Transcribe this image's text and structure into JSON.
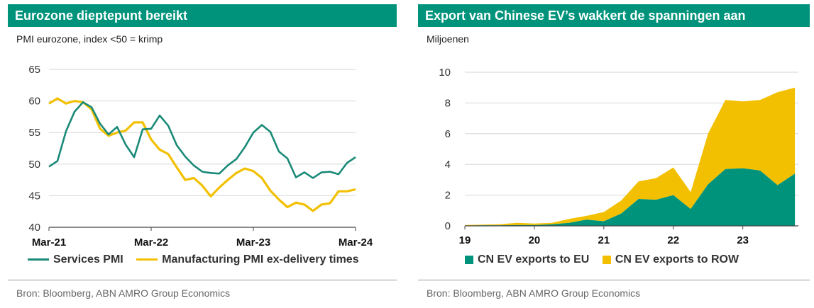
{
  "left": {
    "title": "Eurozone dieptepunt bereikt",
    "subtitle": "PMI eurozone, index <50 = krimp",
    "source": "Bron: Bloomberg, ABN AMRO Group Economics"
  },
  "right": {
    "title": "Export van Chinese EV’s wakkert de spanningen aan",
    "subtitle": "Miljoenen",
    "source": "Bron: Bloomberg, ABN AMRO Group Economics"
  },
  "chart_data": [
    {
      "type": "line",
      "title": "Eurozone dieptepunt bereikt",
      "subtitle": "PMI eurozone, index <50 = krimp",
      "x_ticks": [
        "Mar-21",
        "Mar-22",
        "Mar-23",
        "Mar-24"
      ],
      "ylim": [
        40,
        65
      ],
      "y_ticks": [
        40,
        45,
        50,
        55,
        60,
        65
      ],
      "grid": true,
      "legend_position": "bottom",
      "series": [
        {
          "name": "Services PMI",
          "color": "#1a8a78",
          "values": [
            49.6,
            50.5,
            55.2,
            58.3,
            59.8,
            59.0,
            56.4,
            54.7,
            55.9,
            53.1,
            51.1,
            55.5,
            55.6,
            57.7,
            56.1,
            53.0,
            51.2,
            49.8,
            48.8,
            48.6,
            48.5,
            49.8,
            50.8,
            52.7,
            55.0,
            56.2,
            55.1,
            52.0,
            50.9,
            47.9,
            48.7,
            47.8,
            48.7,
            48.8,
            48.4,
            50.2,
            51.1
          ]
        },
        {
          "name": "Manufacturing PMI ex-delivery times",
          "color": "#f2c000",
          "values": [
            59.6,
            60.4,
            59.6,
            60.0,
            59.8,
            58.7,
            55.6,
            54.5,
            55.0,
            55.3,
            56.6,
            56.6,
            53.9,
            52.3,
            51.6,
            49.5,
            47.5,
            47.8,
            46.6,
            44.9,
            46.3,
            47.5,
            48.6,
            49.3,
            48.9,
            47.8,
            45.8,
            44.4,
            43.2,
            43.9,
            43.6,
            42.6,
            43.6,
            43.8,
            45.7,
            45.7,
            46.0
          ]
        }
      ]
    },
    {
      "type": "area",
      "title": "Export van Chinese EV’s wakkert de spanningen aan",
      "ylabel": "Miljoenen",
      "x_ticks": [
        "19",
        "20",
        "21",
        "22",
        "23"
      ],
      "x": [
        2019.0,
        2019.25,
        2019.5,
        2019.75,
        2020.0,
        2020.25,
        2020.5,
        2020.75,
        2021.0,
        2021.25,
        2021.5,
        2021.75,
        2022.0,
        2022.25,
        2022.5,
        2022.75,
        2023.0,
        2023.25,
        2023.5,
        2023.75
      ],
      "ylim": [
        0,
        10
      ],
      "y_ticks": [
        0,
        2,
        4,
        6,
        8,
        10
      ],
      "grid": true,
      "stacked": true,
      "legend_position": "bottom",
      "series": [
        {
          "name": "CN EV exports to EU",
          "color": "#00937b",
          "values": [
            0.02,
            0.03,
            0.03,
            0.05,
            0.05,
            0.1,
            0.2,
            0.4,
            0.3,
            0.8,
            1.75,
            1.7,
            2.0,
            1.1,
            2.7,
            3.7,
            3.75,
            3.6,
            2.65,
            3.4
          ]
        },
        {
          "name": "CN EV exports to ROW",
          "color": "#f2c000",
          "values": [
            0.03,
            0.05,
            0.07,
            0.15,
            0.1,
            0.1,
            0.25,
            0.25,
            0.6,
            0.85,
            1.15,
            1.4,
            1.8,
            1.1,
            3.3,
            4.5,
            4.35,
            4.6,
            6.05,
            5.6
          ]
        }
      ]
    }
  ]
}
